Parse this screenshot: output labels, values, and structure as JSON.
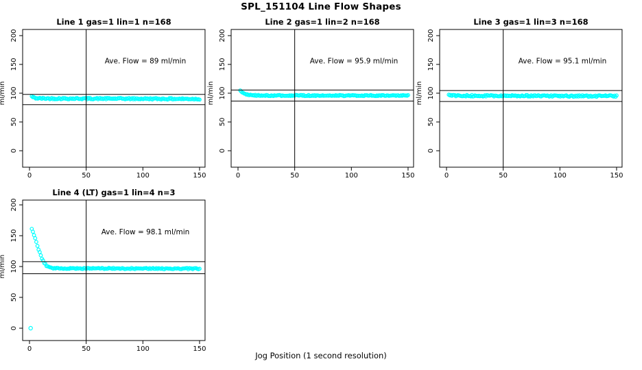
{
  "page": {
    "title": "SPL_151104  Line Flow Shapes",
    "xlabel": "Jog Position (1 second resolution)",
    "background": "#ffffff"
  },
  "colors": {
    "points": "#00ffff",
    "axis": "#000000",
    "ref_line": "#000000"
  },
  "chart_data": [
    {
      "type": "scatter",
      "id": "line1",
      "title": "Line 1 gas=1 lin=1 n=168",
      "annotation": "Ave. Flow =  89  ml/min",
      "ave_flow_ml_min": 89,
      "n": 168,
      "ylabel": "ml/min",
      "xticks": [
        0,
        50,
        100,
        150
      ],
      "yticks": [
        0,
        50,
        100,
        150,
        200
      ],
      "xlim": [
        0,
        150
      ],
      "ylim": [
        0,
        200
      ],
      "ref_lines": {
        "upper": 97.9,
        "lower": 80.1,
        "vertical_x": 50
      },
      "shape_profile_ml_min": [
        [
          2,
          94.5
        ],
        [
          3,
          93
        ],
        [
          5,
          91.5
        ],
        [
          8,
          91
        ],
        [
          15,
          90.8
        ],
        [
          80,
          90.5
        ],
        [
          150,
          90
        ]
      ],
      "noise": 1.3,
      "points_n": 168,
      "x_range": [
        2,
        150
      ],
      "zero_point": null,
      "grid": {
        "row": 0,
        "col": 0
      }
    },
    {
      "type": "scatter",
      "id": "line2",
      "title": "Line 2 gas=1 lin=2 n=168",
      "annotation": "Ave. Flow =  95.9  ml/min",
      "ave_flow_ml_min": 95.9,
      "n": 168,
      "ylabel": "ml/min",
      "xticks": [
        0,
        50,
        100,
        150
      ],
      "yticks": [
        0,
        50,
        100,
        150,
        200
      ],
      "xlim": [
        0,
        150
      ],
      "ylim": [
        0,
        200
      ],
      "ref_lines": {
        "upper": 105.5,
        "lower": 86.3,
        "vertical_x": 50
      },
      "shape_profile_ml_min": [
        [
          2,
          104
        ],
        [
          3,
          102.5
        ],
        [
          4,
          101
        ],
        [
          5,
          100
        ],
        [
          6,
          99
        ],
        [
          7,
          98.2
        ],
        [
          8,
          97.5
        ],
        [
          10,
          96.8
        ],
        [
          12,
          96.3
        ],
        [
          20,
          96
        ],
        [
          150,
          95.8
        ]
      ],
      "noise": 1.0,
      "points_n": 168,
      "x_range": [
        2,
        150
      ],
      "zero_point": null,
      "grid": {
        "row": 0,
        "col": 1
      }
    },
    {
      "type": "scatter",
      "id": "line3",
      "title": "Line 3 gas=1 lin=3 n=168",
      "annotation": "Ave. Flow =  95.1  ml/min",
      "ave_flow_ml_min": 95.1,
      "n": 168,
      "ylabel": "ml/min",
      "xticks": [
        0,
        50,
        100,
        150
      ],
      "yticks": [
        0,
        50,
        100,
        150,
        200
      ],
      "xlim": [
        0,
        150
      ],
      "ylim": [
        0,
        200
      ],
      "ref_lines": {
        "upper": 104.6,
        "lower": 85.6,
        "vertical_x": 50
      },
      "shape_profile_ml_min": [
        [
          2,
          96.5
        ],
        [
          6,
          95.5
        ],
        [
          150,
          95
        ]
      ],
      "noise": 1.4,
      "points_n": 168,
      "x_range": [
        2,
        150
      ],
      "zero_point": null,
      "grid": {
        "row": 0,
        "col": 2
      }
    },
    {
      "type": "scatter",
      "id": "line4",
      "title": "Line 4 (LT) gas=1 lin=4 n=3",
      "annotation": "Ave. Flow =  98.1  ml/min",
      "ave_flow_ml_min": 98.1,
      "n": 3,
      "ylabel": "ml/min",
      "xticks": [
        0,
        50,
        100,
        150
      ],
      "yticks": [
        0,
        50,
        100,
        150,
        200
      ],
      "xlim": [
        0,
        150
      ],
      "ylim": [
        0,
        200
      ],
      "ref_lines": {
        "upper": 107.9,
        "lower": 88.3,
        "vertical_x": 50
      },
      "shape_profile_ml_min": [
        [
          2,
          161
        ],
        [
          3,
          156
        ],
        [
          4,
          151
        ],
        [
          5,
          146
        ],
        [
          6,
          140
        ],
        [
          7,
          134
        ],
        [
          8,
          128
        ],
        [
          9,
          123
        ],
        [
          10,
          118
        ],
        [
          11,
          113
        ],
        [
          12,
          109
        ],
        [
          13,
          106
        ],
        [
          14,
          103.5
        ],
        [
          15,
          101.5
        ],
        [
          16,
          100
        ],
        [
          17,
          99
        ],
        [
          18,
          98.3
        ],
        [
          20,
          97.6
        ],
        [
          23,
          97.2
        ],
        [
          27,
          97
        ],
        [
          60,
          97
        ],
        [
          150,
          96.5
        ]
      ],
      "noise": 1.0,
      "points_n": 149,
      "x_range": [
        2,
        150
      ],
      "zero_point": [
        1,
        0
      ],
      "grid": {
        "row": 1,
        "col": 0
      }
    }
  ]
}
